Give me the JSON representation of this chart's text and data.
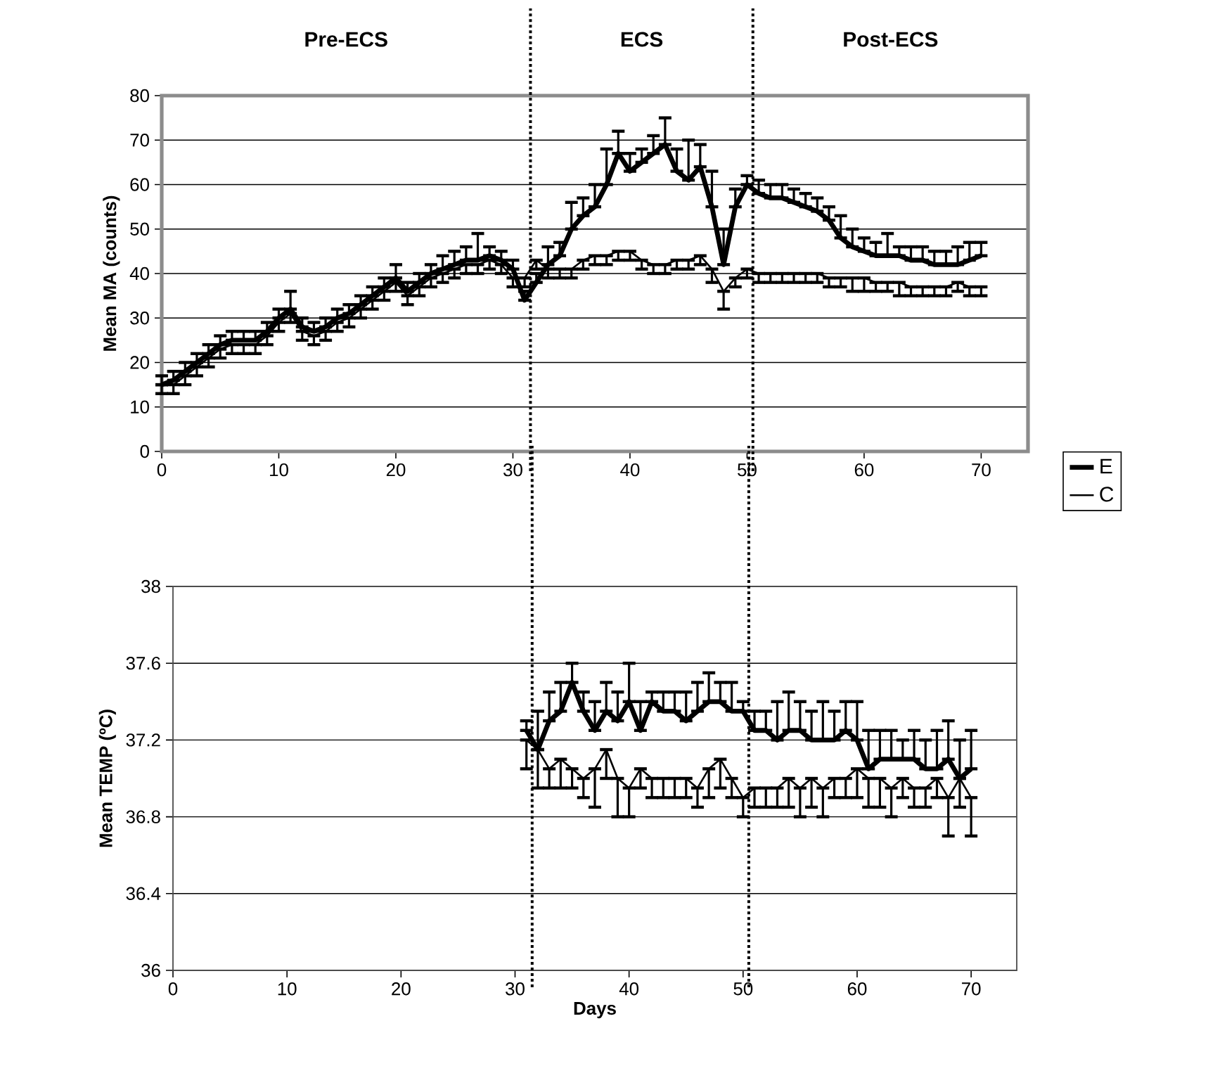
{
  "chart_data": [
    {
      "type": "line",
      "ylabel": "Mean MA (counts)",
      "xlim": [
        0,
        74
      ],
      "ylim": [
        0,
        80
      ],
      "xticks": [
        0,
        10,
        20,
        30,
        40,
        50,
        60,
        70
      ],
      "yticks": [
        0,
        10,
        20,
        30,
        40,
        50,
        60,
        70,
        80
      ],
      "grid": "y",
      "legend": "right",
      "annotations": [
        "Pre-ECS",
        "ECS",
        "Post-ECS"
      ],
      "ref_lines": [
        {
          "axis": "x",
          "value": 31.5,
          "line_style": "dotted"
        },
        {
          "axis": "x",
          "value": 50.5,
          "line_style": "dotted"
        }
      ],
      "x": [
        0,
        1,
        2,
        3,
        4,
        5,
        6,
        7,
        8,
        9,
        10,
        11,
        12,
        13,
        14,
        15,
        16,
        17,
        18,
        19,
        20,
        21,
        22,
        23,
        24,
        25,
        26,
        27,
        28,
        29,
        30,
        31,
        32,
        33,
        34,
        35,
        36,
        37,
        38,
        39,
        40,
        41,
        42,
        43,
        44,
        45,
        46,
        47,
        48,
        49,
        50,
        51,
        52,
        53,
        54,
        55,
        56,
        57,
        58,
        59,
        60,
        61,
        62,
        63,
        64,
        65,
        66,
        67,
        68,
        69,
        70
      ],
      "series": [
        {
          "name": "E",
          "color": "#000000",
          "values": [
            15,
            16,
            18,
            20,
            22,
            24,
            25,
            25,
            25,
            27,
            30,
            32,
            28,
            27,
            28,
            30,
            31,
            33,
            35,
            37,
            39,
            36,
            38,
            40,
            41,
            42,
            43,
            43,
            44,
            43,
            41,
            34,
            38,
            42,
            44,
            50,
            53,
            55,
            60,
            67,
            63,
            65,
            67,
            69,
            63,
            61,
            64,
            55,
            42,
            55,
            60,
            58,
            57,
            57,
            56,
            55,
            54,
            52,
            48,
            46,
            45,
            44,
            44,
            44,
            43,
            43,
            42,
            42,
            42,
            43,
            44
          ],
          "errors": [
            [
              15,
              17
            ],
            [
              16,
              18
            ],
            [
              18,
              20
            ],
            [
              20,
              22
            ],
            [
              22,
              24
            ],
            [
              24,
              26
            ],
            [
              25,
              27
            ],
            [
              25,
              27
            ],
            [
              25,
              27
            ],
            [
              27,
              29
            ],
            [
              30,
              32
            ],
            [
              32,
              36
            ],
            [
              28,
              30
            ],
            [
              27,
              29
            ],
            [
              28,
              30
            ],
            [
              30,
              32
            ],
            [
              31,
              33
            ],
            [
              33,
              35
            ],
            [
              35,
              37
            ],
            [
              37,
              39
            ],
            [
              39,
              42
            ],
            [
              36,
              38
            ],
            [
              38,
              40
            ],
            [
              40,
              42
            ],
            [
              41,
              44
            ],
            [
              42,
              45
            ],
            [
              43,
              46
            ],
            [
              43,
              49
            ],
            [
              44,
              46
            ],
            [
              43,
              45
            ],
            [
              41,
              43
            ],
            [
              34,
              36
            ],
            [
              38,
              40
            ],
            [
              42,
              46
            ],
            [
              44,
              47
            ],
            [
              50,
              56
            ],
            [
              53,
              57
            ],
            [
              55,
              60
            ],
            [
              60,
              68
            ],
            [
              67,
              72
            ],
            [
              63,
              67
            ],
            [
              65,
              68
            ],
            [
              67,
              71
            ],
            [
              69,
              75
            ],
            [
              63,
              68
            ],
            [
              61,
              70
            ],
            [
              64,
              69
            ],
            [
              55,
              63
            ],
            [
              42,
              50
            ],
            [
              55,
              59
            ],
            [
              60,
              62
            ],
            [
              58,
              61
            ],
            [
              57,
              60
            ],
            [
              57,
              60
            ],
            [
              56,
              59
            ],
            [
              55,
              58
            ],
            [
              54,
              57
            ],
            [
              52,
              55
            ],
            [
              48,
              53
            ],
            [
              46,
              50
            ],
            [
              45,
              48
            ],
            [
              44,
              47
            ],
            [
              44,
              49
            ],
            [
              44,
              46
            ],
            [
              43,
              46
            ],
            [
              43,
              46
            ],
            [
              42,
              45
            ],
            [
              42,
              45
            ],
            [
              42,
              46
            ],
            [
              43,
              47
            ],
            [
              44,
              47
            ]
          ]
        },
        {
          "name": "C",
          "color": "#000000",
          "values": [
            15,
            15,
            17,
            19,
            21,
            23,
            24,
            24,
            24,
            26,
            29,
            31,
            27,
            26,
            27,
            29,
            30,
            32,
            34,
            36,
            38,
            35,
            37,
            39,
            40,
            41,
            42,
            42,
            43,
            42,
            39,
            39,
            43,
            41,
            41,
            41,
            43,
            44,
            44,
            45,
            45,
            43,
            42,
            42,
            43,
            43,
            44,
            41,
            36,
            39,
            41,
            40,
            40,
            40,
            40,
            40,
            40,
            39,
            39,
            39,
            39,
            38,
            38,
            38,
            37,
            37,
            37,
            37,
            38,
            37,
            37
          ],
          "errors": [
            [
              13,
              15
            ],
            [
              13,
              15
            ],
            [
              15,
              17
            ],
            [
              17,
              19
            ],
            [
              19,
              21
            ],
            [
              21,
              23
            ],
            [
              22,
              24
            ],
            [
              22,
              24
            ],
            [
              22,
              24
            ],
            [
              24,
              26
            ],
            [
              27,
              29
            ],
            [
              29,
              31
            ],
            [
              25,
              27
            ],
            [
              24,
              26
            ],
            [
              25,
              27
            ],
            [
              27,
              29
            ],
            [
              28,
              30
            ],
            [
              30,
              32
            ],
            [
              32,
              34
            ],
            [
              34,
              36
            ],
            [
              36,
              38
            ],
            [
              33,
              35
            ],
            [
              35,
              37
            ],
            [
              37,
              39
            ],
            [
              38,
              40
            ],
            [
              39,
              41
            ],
            [
              40,
              42
            ],
            [
              40,
              42
            ],
            [
              41,
              43
            ],
            [
              40,
              42
            ],
            [
              37,
              39
            ],
            [
              37,
              39
            ],
            [
              41,
              43
            ],
            [
              39,
              41
            ],
            [
              39,
              41
            ],
            [
              39,
              41
            ],
            [
              41,
              43
            ],
            [
              42,
              44
            ],
            [
              42,
              44
            ],
            [
              43,
              45
            ],
            [
              43,
              45
            ],
            [
              41,
              43
            ],
            [
              40,
              42
            ],
            [
              40,
              42
            ],
            [
              41,
              43
            ],
            [
              41,
              43
            ],
            [
              42,
              44
            ],
            [
              38,
              41
            ],
            [
              32,
              36
            ],
            [
              37,
              39
            ],
            [
              39,
              41
            ],
            [
              38,
              40
            ],
            [
              38,
              40
            ],
            [
              38,
              40
            ],
            [
              38,
              40
            ],
            [
              38,
              40
            ],
            [
              38,
              40
            ],
            [
              37,
              39
            ],
            [
              37,
              39
            ],
            [
              36,
              39
            ],
            [
              36,
              39
            ],
            [
              36,
              38
            ],
            [
              36,
              38
            ],
            [
              35,
              38
            ],
            [
              35,
              37
            ],
            [
              35,
              37
            ],
            [
              35,
              37
            ],
            [
              35,
              37
            ],
            [
              36,
              38
            ],
            [
              35,
              37
            ],
            [
              35,
              37
            ]
          ]
        }
      ]
    },
    {
      "type": "line",
      "xlabel": "Days",
      "ylabel": "Mean TEMP (ºC)",
      "xlim": [
        0,
        74
      ],
      "ylim": [
        36,
        38
      ],
      "xticks": [
        0,
        10,
        20,
        30,
        40,
        50,
        60,
        70
      ],
      "yticks": [
        36,
        36.4,
        36.8,
        37.2,
        37.6,
        38
      ],
      "grid": "y",
      "ref_lines": [
        {
          "axis": "x",
          "value": 31.5,
          "line_style": "dotted"
        },
        {
          "axis": "x",
          "value": 50.5,
          "line_style": "dotted"
        }
      ],
      "x": [
        31,
        32,
        33,
        34,
        35,
        36,
        37,
        38,
        39,
        40,
        41,
        42,
        43,
        44,
        45,
        46,
        47,
        48,
        49,
        50,
        51,
        52,
        53,
        54,
        55,
        56,
        57,
        58,
        59,
        60,
        61,
        62,
        63,
        64,
        65,
        66,
        67,
        68,
        69,
        70
      ],
      "series": [
        {
          "color": "#000000",
          "values": [
            37.25,
            37.15,
            37.3,
            37.35,
            37.5,
            37.35,
            37.25,
            37.35,
            37.3,
            37.4,
            37.25,
            37.4,
            37.35,
            37.35,
            37.3,
            37.35,
            37.4,
            37.4,
            37.35,
            37.35,
            37.25,
            37.25,
            37.2,
            37.25,
            37.25,
            37.2,
            37.2,
            37.2,
            37.25,
            37.2,
            37.05,
            37.1,
            37.1,
            37.1,
            37.1,
            37.05,
            37.05,
            37.1,
            37.0,
            37.05
          ],
          "errors": [
            [
              37.25,
              37.3
            ],
            [
              37.15,
              37.35
            ],
            [
              37.3,
              37.45
            ],
            [
              37.35,
              37.5
            ],
            [
              37.5,
              37.6
            ],
            [
              37.35,
              37.45
            ],
            [
              37.25,
              37.4
            ],
            [
              37.35,
              37.5
            ],
            [
              37.3,
              37.45
            ],
            [
              37.4,
              37.6
            ],
            [
              37.25,
              37.4
            ],
            [
              37.4,
              37.45
            ],
            [
              37.35,
              37.45
            ],
            [
              37.35,
              37.45
            ],
            [
              37.3,
              37.45
            ],
            [
              37.35,
              37.5
            ],
            [
              37.4,
              37.55
            ],
            [
              37.4,
              37.5
            ],
            [
              37.35,
              37.5
            ],
            [
              37.35,
              37.4
            ],
            [
              37.25,
              37.35
            ],
            [
              37.25,
              37.35
            ],
            [
              37.2,
              37.4
            ],
            [
              37.25,
              37.45
            ],
            [
              37.25,
              37.4
            ],
            [
              37.2,
              37.35
            ],
            [
              37.2,
              37.4
            ],
            [
              37.2,
              37.35
            ],
            [
              37.25,
              37.4
            ],
            [
              37.2,
              37.4
            ],
            [
              37.05,
              37.25
            ],
            [
              37.1,
              37.25
            ],
            [
              37.1,
              37.25
            ],
            [
              37.1,
              37.2
            ],
            [
              37.1,
              37.25
            ],
            [
              37.05,
              37.2
            ],
            [
              37.05,
              37.25
            ],
            [
              37.1,
              37.3
            ],
            [
              37.0,
              37.2
            ],
            [
              37.05,
              37.25
            ]
          ]
        },
        {
          "color": "#000000",
          "values": [
            37.2,
            37.15,
            37.05,
            37.1,
            37.05,
            37.0,
            37.05,
            37.15,
            37.0,
            36.95,
            37.05,
            37.0,
            37.0,
            37.0,
            37.0,
            36.95,
            37.05,
            37.1,
            37.0,
            36.9,
            36.95,
            36.95,
            36.95,
            37.0,
            36.95,
            37.0,
            36.95,
            37.0,
            37.0,
            37.05,
            37.0,
            37.0,
            36.95,
            37.0,
            36.95,
            36.95,
            37.0,
            36.9,
            37.0,
            36.9
          ],
          "errors": [
            [
              37.05,
              37.2
            ],
            [
              36.95,
              37.15
            ],
            [
              36.95,
              37.05
            ],
            [
              36.95,
              37.1
            ],
            [
              36.95,
              37.05
            ],
            [
              36.9,
              37.0
            ],
            [
              36.85,
              37.05
            ],
            [
              37.0,
              37.15
            ],
            [
              36.8,
              37.0
            ],
            [
              36.8,
              36.95
            ],
            [
              36.95,
              37.05
            ],
            [
              36.9,
              37.0
            ],
            [
              36.9,
              37.0
            ],
            [
              36.9,
              37.0
            ],
            [
              36.9,
              37.0
            ],
            [
              36.85,
              36.95
            ],
            [
              36.9,
              37.05
            ],
            [
              36.95,
              37.1
            ],
            [
              36.9,
              37.0
            ],
            [
              36.8,
              36.9
            ],
            [
              36.85,
              36.95
            ],
            [
              36.85,
              36.95
            ],
            [
              36.85,
              36.95
            ],
            [
              36.85,
              37.0
            ],
            [
              36.8,
              36.95
            ],
            [
              36.85,
              37.0
            ],
            [
              36.8,
              36.95
            ],
            [
              36.9,
              37.0
            ],
            [
              36.9,
              37.0
            ],
            [
              36.9,
              37.05
            ],
            [
              36.85,
              37.0
            ],
            [
              36.85,
              37.0
            ],
            [
              36.8,
              36.95
            ],
            [
              36.9,
              37.0
            ],
            [
              36.85,
              36.95
            ],
            [
              36.85,
              36.95
            ],
            [
              36.9,
              37.0
            ],
            [
              36.7,
              36.9
            ],
            [
              36.85,
              37.0
            ],
            [
              36.7,
              36.9
            ]
          ]
        }
      ]
    }
  ]
}
